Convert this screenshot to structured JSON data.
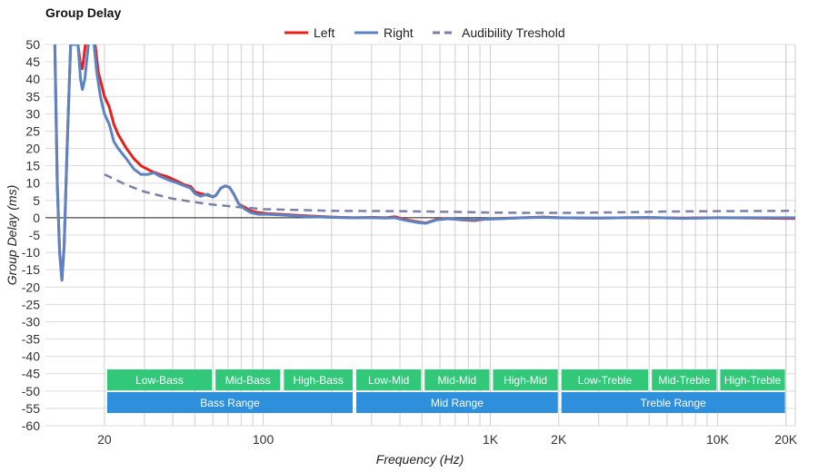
{
  "chart_data": {
    "type": "line",
    "title": "Group Delay",
    "xlabel": "Frequency (Hz)",
    "ylabel": "Group Delay (ms)",
    "x_scale": "log",
    "xlim": [
      11,
      22000
    ],
    "ylim": [
      -60,
      50
    ],
    "grid": true,
    "legend_position": "top-center",
    "x_tick_labels": [
      {
        "value": 20,
        "label": "20"
      },
      {
        "value": 100,
        "label": "100"
      },
      {
        "value": 1000,
        "label": "1K"
      },
      {
        "value": 2000,
        "label": "2K"
      },
      {
        "value": 10000,
        "label": "10K"
      },
      {
        "value": 20000,
        "label": "20K"
      }
    ],
    "y_ticks": [
      50,
      45,
      40,
      35,
      30,
      25,
      20,
      15,
      10,
      5,
      0,
      -5,
      -10,
      -15,
      -20,
      -25,
      -30,
      -35,
      -40,
      -45,
      -50,
      -55,
      -60
    ],
    "series": [
      {
        "name": "Left",
        "color": "#e8201c",
        "dash": "solid",
        "points": [
          [
            12.1,
            50
          ],
          [
            12.4,
            10
          ],
          [
            12.7,
            -10
          ],
          [
            13,
            -18
          ],
          [
            13.3,
            -8
          ],
          [
            13.7,
            20
          ],
          [
            14.2,
            50
          ],
          [
            15.3,
            50
          ],
          [
            15.7,
            44
          ],
          [
            16,
            43
          ],
          [
            16.5,
            50
          ],
          [
            17.5,
            55
          ],
          [
            18.2,
            50
          ],
          [
            18.8,
            42
          ],
          [
            19.5,
            38
          ],
          [
            20,
            35
          ],
          [
            21,
            32
          ],
          [
            22,
            27
          ],
          [
            23,
            24
          ],
          [
            25,
            20
          ],
          [
            27,
            17
          ],
          [
            29,
            15
          ],
          [
            32,
            13.5
          ],
          [
            35,
            12.5
          ],
          [
            38,
            11.8
          ],
          [
            42,
            10.5
          ],
          [
            45,
            9.5
          ],
          [
            48,
            9
          ],
          [
            50,
            7.5
          ],
          [
            53,
            7
          ],
          [
            57,
            6.5
          ],
          [
            60,
            6
          ],
          [
            62,
            6.5
          ],
          [
            65,
            8.5
          ],
          [
            68,
            9.2
          ],
          [
            71,
            8.8
          ],
          [
            74,
            7
          ],
          [
            78,
            4
          ],
          [
            83,
            3
          ],
          [
            88,
            2
          ],
          [
            95,
            1.5
          ],
          [
            105,
            1.2
          ],
          [
            120,
            1
          ],
          [
            150,
            0.6
          ],
          [
            200,
            0.2
          ],
          [
            250,
            0
          ],
          [
            300,
            0.1
          ],
          [
            350,
            0
          ],
          [
            380,
            0.3
          ],
          [
            420,
            -0.5
          ],
          [
            480,
            -1.2
          ],
          [
            520,
            -1.5
          ],
          [
            580,
            -0.5
          ],
          [
            650,
            -0.2
          ],
          [
            750,
            -0.6
          ],
          [
            850,
            -0.8
          ],
          [
            950,
            -0.4
          ],
          [
            1100,
            -0.2
          ],
          [
            1400,
            0
          ],
          [
            1700,
            0.2
          ],
          [
            2000,
            0
          ],
          [
            3000,
            -0.1
          ],
          [
            4000,
            0
          ],
          [
            5000,
            0
          ],
          [
            7000,
            -0.1
          ],
          [
            10000,
            0
          ],
          [
            15000,
            -0.1
          ],
          [
            20000,
            -0.2
          ],
          [
            22000,
            -0.2
          ]
        ]
      },
      {
        "name": "Right",
        "color": "#5b84c4",
        "dash": "solid",
        "points": [
          [
            12.1,
            50
          ],
          [
            12.4,
            10
          ],
          [
            12.7,
            -10
          ],
          [
            13,
            -18
          ],
          [
            13.3,
            -8
          ],
          [
            13.7,
            20
          ],
          [
            14.2,
            50
          ],
          [
            15.3,
            50
          ],
          [
            15.7,
            40
          ],
          [
            16,
            37
          ],
          [
            16.4,
            40
          ],
          [
            17,
            50
          ],
          [
            17.5,
            55
          ],
          [
            18,
            50
          ],
          [
            18.5,
            42
          ],
          [
            19.2,
            35
          ],
          [
            20,
            30
          ],
          [
            21,
            27
          ],
          [
            22,
            22
          ],
          [
            23,
            20
          ],
          [
            25,
            17
          ],
          [
            27,
            14
          ],
          [
            29,
            12.5
          ],
          [
            31,
            12.5
          ],
          [
            33,
            13
          ],
          [
            35,
            12
          ],
          [
            38,
            11
          ],
          [
            42,
            10
          ],
          [
            45,
            9.2
          ],
          [
            48,
            8.5
          ],
          [
            50,
            7
          ],
          [
            53,
            6.2
          ],
          [
            57,
            6.8
          ],
          [
            60,
            6
          ],
          [
            62,
            6.5
          ],
          [
            65,
            8.5
          ],
          [
            68,
            9.2
          ],
          [
            71,
            8.8
          ],
          [
            74,
            7
          ],
          [
            78,
            4
          ],
          [
            83,
            2.5
          ],
          [
            88,
            1.5
          ],
          [
            95,
            1
          ],
          [
            105,
            1
          ],
          [
            120,
            0.8
          ],
          [
            150,
            0.4
          ],
          [
            200,
            0.1
          ],
          [
            250,
            0
          ],
          [
            300,
            0
          ],
          [
            350,
            -0.1
          ],
          [
            380,
            0
          ],
          [
            420,
            -0.7
          ],
          [
            480,
            -1.4
          ],
          [
            520,
            -1.6
          ],
          [
            580,
            -0.6
          ],
          [
            650,
            -0.3
          ],
          [
            750,
            -0.5
          ],
          [
            850,
            -0.6
          ],
          [
            950,
            -0.4
          ],
          [
            1100,
            -0.3
          ],
          [
            1400,
            0
          ],
          [
            1700,
            0.1
          ],
          [
            2000,
            0
          ],
          [
            3000,
            -0.1
          ],
          [
            4000,
            0
          ],
          [
            5000,
            0.1
          ],
          [
            7000,
            -0.2
          ],
          [
            10000,
            0
          ],
          [
            15000,
            0
          ],
          [
            20000,
            0
          ],
          [
            22000,
            0
          ]
        ]
      },
      {
        "name": "Audibility Treshold",
        "color": "#7b7fab",
        "dash": "dashed",
        "points": [
          [
            20,
            12.5
          ],
          [
            25,
            9.5
          ],
          [
            30,
            7.5
          ],
          [
            40,
            5.5
          ],
          [
            50,
            4.5
          ],
          [
            60,
            3.8
          ],
          [
            80,
            3
          ],
          [
            100,
            2.5
          ],
          [
            150,
            2.2
          ],
          [
            200,
            2
          ],
          [
            400,
            1.9
          ],
          [
            700,
            1.7
          ],
          [
            1000,
            1.5
          ],
          [
            1500,
            1.4
          ],
          [
            2000,
            1.4
          ],
          [
            3000,
            1.5
          ],
          [
            4000,
            1.6
          ],
          [
            6000,
            1.8
          ],
          [
            10000,
            1.9
          ],
          [
            22000,
            2
          ]
        ]
      }
    ],
    "bands": [
      {
        "label": "Low-Bass",
        "start": 20,
        "end": 60,
        "row": 1
      },
      {
        "label": "Mid-Bass",
        "start": 60,
        "end": 120,
        "row": 1
      },
      {
        "label": "High-Bass",
        "start": 120,
        "end": 250,
        "row": 1
      },
      {
        "label": "Low-Mid",
        "start": 250,
        "end": 500,
        "row": 1
      },
      {
        "label": "Mid-Mid",
        "start": 500,
        "end": 1000,
        "row": 1
      },
      {
        "label": "High-Mid",
        "start": 1000,
        "end": 2000,
        "row": 1
      },
      {
        "label": "Low-Treble",
        "start": 2000,
        "end": 5000,
        "row": 1
      },
      {
        "label": "Mid-Treble",
        "start": 5000,
        "end": 10000,
        "row": 1
      },
      {
        "label": "High-Treble",
        "start": 10000,
        "end": 20000,
        "row": 1
      },
      {
        "label": "Bass Range",
        "start": 20,
        "end": 250,
        "row": 2
      },
      {
        "label": "Mid Range",
        "start": 250,
        "end": 2000,
        "row": 2
      },
      {
        "label": "Treble Range",
        "start": 2000,
        "end": 20000,
        "row": 2
      }
    ],
    "band_colors": {
      "row1": "#32c87a",
      "row2": "#2e8fdd"
    }
  }
}
